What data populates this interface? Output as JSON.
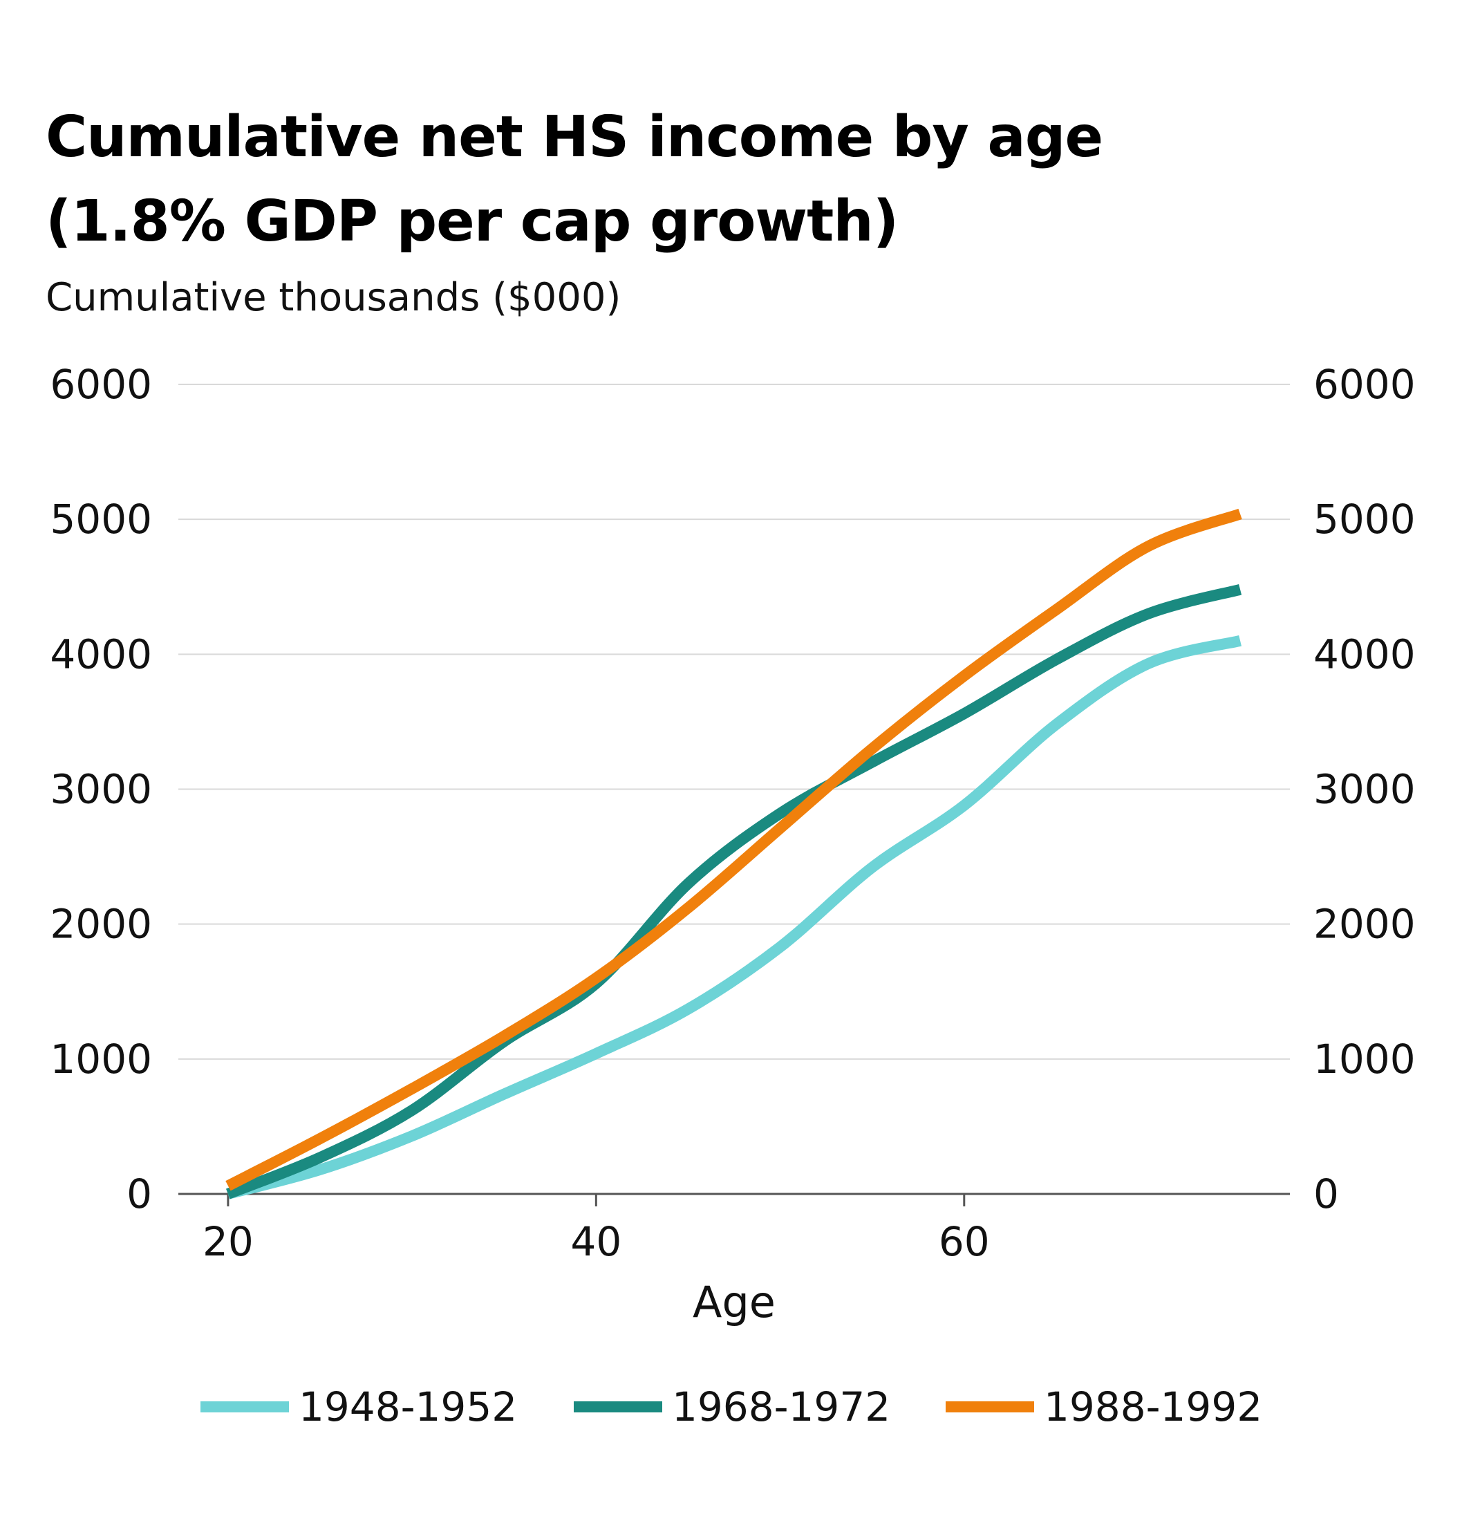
{
  "title_line1": "Cumulative net HS income by age",
  "title_line2": "(1.8% GDP per cap growth)",
  "subtitle": "Cumulative thousands ($000)",
  "chart_data": {
    "type": "line",
    "title": "Cumulative net HS income by age (1.8% GDP per cap growth)",
    "ylabel": "Cumulative thousands ($000)",
    "xlabel": "Age",
    "x_ticks": [
      "20",
      "40",
      "60"
    ],
    "y_ticks": [
      "0",
      "1000",
      "2000",
      "3000",
      "4000",
      "5000",
      "6000"
    ],
    "xlim": [
      17.3,
      77.7
    ],
    "ylim": [
      0,
      6000
    ],
    "grid": true,
    "dual_y_axis": true,
    "legend_position": "bottom",
    "x": [
      20,
      25,
      30,
      35,
      40,
      45,
      50,
      55,
      60,
      65,
      70,
      75
    ],
    "series": [
      {
        "name": "1948-1952",
        "color": "#6dd3d6",
        "values": [
          0,
          180,
          430,
          740,
          1040,
          1370,
          1830,
          2420,
          2880,
          3480,
          3930,
          4100
        ]
      },
      {
        "name": "1968-1972",
        "color": "#1a8a80",
        "values": [
          0,
          270,
          620,
          1130,
          1560,
          2300,
          2820,
          3200,
          3560,
          3960,
          4300,
          4480
        ]
      },
      {
        "name": "1988-1992",
        "color": "#f0800c",
        "values": [
          60,
          410,
          780,
          1170,
          1600,
          2120,
          2710,
          3300,
          3840,
          4330,
          4800,
          5040
        ]
      }
    ]
  }
}
